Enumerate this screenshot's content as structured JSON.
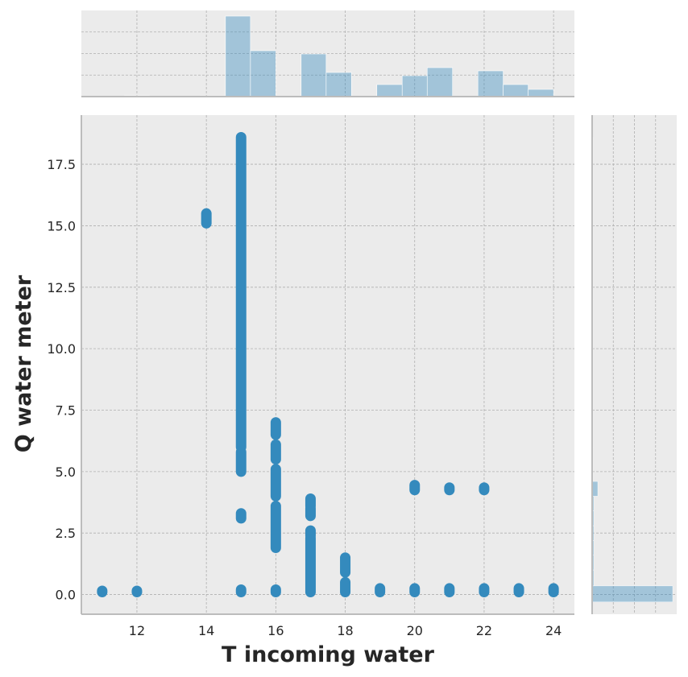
{
  "chart_data": {
    "type": "scatter",
    "title": "",
    "xlabel": "T incoming water",
    "ylabel": "Q water meter",
    "xlim": [
      10.4,
      24.6
    ],
    "ylim": [
      -0.8,
      19.5
    ],
    "x_ticks": [
      12,
      14,
      16,
      18,
      20,
      22,
      24
    ],
    "y_ticks": [
      0.0,
      2.5,
      5.0,
      7.5,
      10.0,
      12.5,
      15.0,
      17.5
    ],
    "x_tick_labels": [
      "12",
      "14",
      "16",
      "18",
      "20",
      "22",
      "24"
    ],
    "y_tick_labels": [
      "0.0",
      "2.5",
      "5.0",
      "7.5",
      "10.0",
      "12.5",
      "15.0",
      "17.5"
    ],
    "grid": true,
    "legend": "none",
    "colors": {
      "points": "#348ABD",
      "histogram": "#348ABD",
      "plot_background": "#EBEBEB",
      "grid": "#B0B0B0",
      "spine": "#BCBCBC"
    },
    "series": [
      {
        "points": [
          {
            "x": 11,
            "y": [
              0.1,
              0.15
            ]
          },
          {
            "x": 12,
            "y": [
              0.1,
              0.15
            ]
          },
          {
            "x": 14,
            "y": [
              15.1,
              15.5
            ]
          },
          {
            "x": 15,
            "y": [
              0.1,
              0.2
            ]
          },
          {
            "x": 15,
            "y": [
              3.1,
              3.3
            ]
          },
          {
            "x": 15,
            "y": [
              5.0,
              5.8
            ]
          },
          {
            "x": 15,
            "y": [
              6.0,
              18.6
            ]
          },
          {
            "x": 16,
            "y": [
              0.1,
              0.2
            ]
          },
          {
            "x": 16,
            "y": [
              1.9,
              3.6
            ]
          },
          {
            "x": 16,
            "y": [
              4.0,
              5.1
            ]
          },
          {
            "x": 16,
            "y": [
              5.5,
              6.1
            ]
          },
          {
            "x": 16,
            "y": [
              6.5,
              7.0
            ]
          },
          {
            "x": 17,
            "y": [
              0.1,
              2.3
            ]
          },
          {
            "x": 17,
            "y": [
              2.4,
              2.6
            ]
          },
          {
            "x": 17,
            "y": [
              3.2,
              3.5
            ]
          },
          {
            "x": 17,
            "y": [
              3.6,
              3.9
            ]
          },
          {
            "x": 18,
            "y": [
              0.1,
              0.5
            ]
          },
          {
            "x": 18,
            "y": [
              0.9,
              1.5
            ]
          },
          {
            "x": 19,
            "y": [
              0.1,
              0.25
            ]
          },
          {
            "x": 20,
            "y": [
              0.1,
              0.25
            ]
          },
          {
            "x": 20,
            "y": [
              4.25,
              4.45
            ]
          },
          {
            "x": 21,
            "y": [
              0.1,
              0.25
            ]
          },
          {
            "x": 21,
            "y": [
              4.25,
              4.35
            ]
          },
          {
            "x": 22,
            "y": [
              0.1,
              0.25
            ]
          },
          {
            "x": 22,
            "y": [
              4.25,
              4.35
            ]
          },
          {
            "x": 23,
            "y": [
              0.1,
              0.25
            ]
          },
          {
            "x": 24,
            "y": [
              0.1,
              0.25
            ]
          }
        ]
      }
    ],
    "marginal_x_histogram": {
      "bins": [
        {
          "x0": 10.91,
          "x1": 11.64,
          "count": 0.3
        },
        {
          "x0": 11.64,
          "x1": 12.36,
          "count": 1
        },
        {
          "x0": 12.36,
          "x1": 13.09,
          "count": 0.3
        },
        {
          "x0": 13.09,
          "x1": 13.82,
          "count": 0.3
        },
        {
          "x0": 13.82,
          "x1": 14.55,
          "count": 0.8
        },
        {
          "x0": 14.55,
          "x1": 15.27,
          "count": 100
        },
        {
          "x0": 15.27,
          "x1": 16.0,
          "count": 57
        },
        {
          "x0": 16.0,
          "x1": 16.73,
          "count": 0
        },
        {
          "x0": 16.73,
          "x1": 17.45,
          "count": 53
        },
        {
          "x0": 17.45,
          "x1": 18.18,
          "count": 30
        },
        {
          "x0": 18.18,
          "x1": 18.91,
          "count": 0
        },
        {
          "x0": 18.91,
          "x1": 19.64,
          "count": 15
        },
        {
          "x0": 19.64,
          "x1": 20.36,
          "count": 26
        },
        {
          "x0": 20.36,
          "x1": 21.09,
          "count": 36
        },
        {
          "x0": 21.09,
          "x1": 21.82,
          "count": 0
        },
        {
          "x0": 21.82,
          "x1": 22.55,
          "count": 32
        },
        {
          "x0": 22.55,
          "x1": 23.27,
          "count": 15
        },
        {
          "x0": 23.27,
          "x1": 24.0,
          "count": 9
        }
      ]
    },
    "marginal_y_histogram": {
      "bins": [
        {
          "y0": -0.3,
          "y1": 0.35,
          "count": 100
        },
        {
          "y0": 0.35,
          "y1": 1.0,
          "count": 2
        },
        {
          "y0": 1.0,
          "y1": 1.6,
          "count": 2
        },
        {
          "y0": 1.6,
          "y1": 2.2,
          "count": 2
        },
        {
          "y0": 2.2,
          "y1": 2.8,
          "count": 2
        },
        {
          "y0": 2.8,
          "y1": 3.4,
          "count": 2
        },
        {
          "y0": 3.4,
          "y1": 4.0,
          "count": 2
        },
        {
          "y0": 4.0,
          "y1": 4.6,
          "count": 7
        },
        {
          "y0": 4.6,
          "y1": 6.0,
          "count": 1
        },
        {
          "y0": 6.0,
          "y1": 12.0,
          "count": 1
        },
        {
          "y0": 12.0,
          "y1": 18.6,
          "count": 1
        }
      ]
    }
  }
}
